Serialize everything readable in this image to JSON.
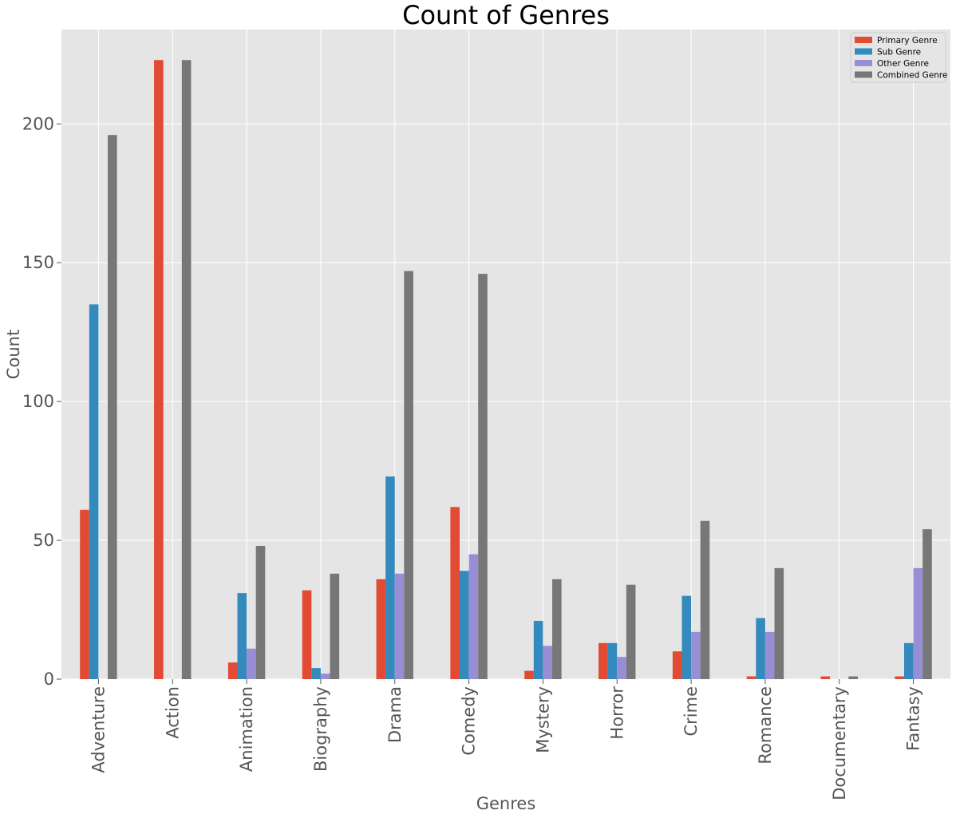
{
  "chart_data": {
    "type": "bar",
    "title": "Count of Genres",
    "xlabel": "Genres",
    "ylabel": "Count",
    "categories": [
      "Adventure",
      "Action",
      "Animation",
      "Biography",
      "Drama",
      "Comedy",
      "Mystery",
      "Horror",
      "Crime",
      "Romance",
      "Documentary",
      "Fantasy"
    ],
    "series": [
      {
        "name": "Primary Genre",
        "color": "#E24A33",
        "values": [
          61,
          223,
          6,
          32,
          36,
          62,
          3,
          13,
          10,
          1,
          1,
          1
        ]
      },
      {
        "name": "Sub Genre",
        "color": "#348ABD",
        "values": [
          135,
          0,
          31,
          4,
          73,
          39,
          21,
          13,
          30,
          22,
          0,
          13
        ]
      },
      {
        "name": "Other Genre",
        "color": "#988ED5",
        "values": [
          0,
          0,
          11,
          2,
          38,
          45,
          12,
          8,
          17,
          17,
          0,
          40
        ]
      },
      {
        "name": "Combined Genre",
        "color": "#777777",
        "values": [
          196,
          223,
          48,
          38,
          147,
          146,
          36,
          34,
          57,
          40,
          1,
          54
        ]
      }
    ],
    "yticks": [
      0,
      50,
      100,
      150,
      200
    ],
    "ylim": [
      0,
      234
    ],
    "grid": true,
    "legend_position": "top-right",
    "plot_background": "#E5E5E5",
    "grid_color": "#FFFFFF"
  }
}
